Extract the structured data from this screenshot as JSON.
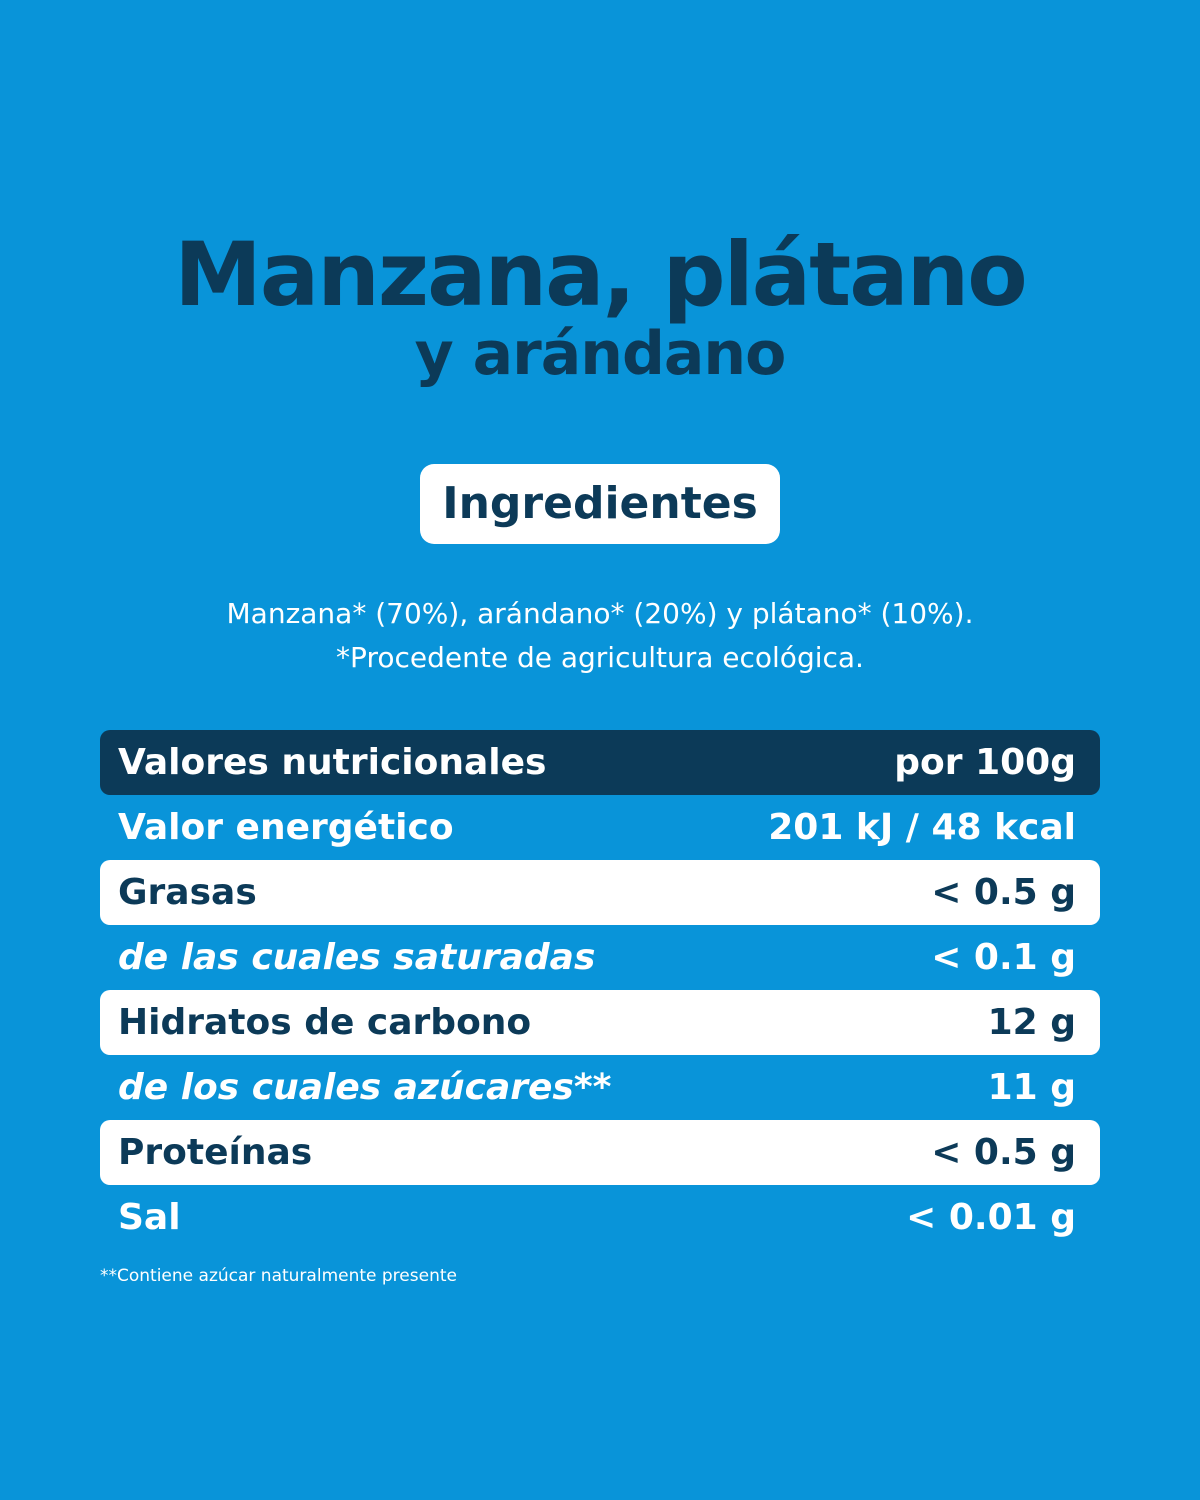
{
  "colors": {
    "background": "#0994d9",
    "dark": "#0c3a58",
    "light": "#ffffff"
  },
  "title": {
    "line1": "Manzana, plátano",
    "line2": "y arándano"
  },
  "ingredients": {
    "badge": "Ingredientes",
    "line1": "Manzana* (70%), arándano* (20%) y plátano* (10%).",
    "line2": "*Procedente de agricultura ecológica."
  },
  "nutrition": {
    "header": {
      "label": "Valores nutricionales",
      "value": "por 100g"
    },
    "rows": [
      {
        "label": "Valor energético",
        "value": "201 kJ / 48 kcal"
      },
      {
        "label": "Grasas",
        "value": "< 0.5 g"
      },
      {
        "label": "de las cuales saturadas",
        "value": "< 0.1 g"
      },
      {
        "label": "Hidratos de carbono",
        "value": "12 g"
      },
      {
        "label": "de los cuales azúcares**",
        "value": "11 g"
      },
      {
        "label": "Proteínas",
        "value": "< 0.5 g"
      },
      {
        "label": "Sal",
        "value": "< 0.01 g"
      }
    ]
  },
  "footnote": "**Contiene azúcar naturalmente presente"
}
